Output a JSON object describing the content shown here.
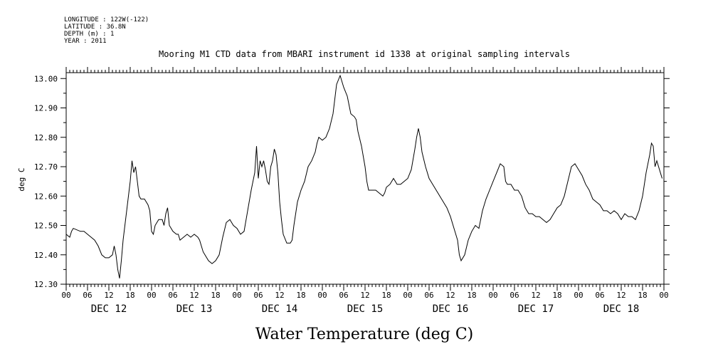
{
  "header": {
    "lines": [
      "LONGITUDE : 122W(-122)",
      "LATITUDE : 36.8N",
      "DEPTH (m) : 1",
      "YEAR : 2011"
    ]
  },
  "chart_data": {
    "type": "line",
    "title": "Mooring M1 CTD data from MBARI instrument id 1338 at original sampling intervals",
    "ylabel": "deg C",
    "xlabel": "Water Temperature (deg C)",
    "ylim": [
      12.3,
      13.02
    ],
    "y_ticks": [
      "12.30",
      "12.40",
      "12.50",
      "12.60",
      "12.70",
      "12.80",
      "12.90",
      "13.00"
    ],
    "x_range_hours": [
      0,
      168
    ],
    "hour_ticks": [
      "00",
      "06",
      "12",
      "18",
      "00",
      "06",
      "12",
      "18",
      "00",
      "06",
      "12",
      "18",
      "00",
      "06",
      "12",
      "18",
      "00",
      "06",
      "12",
      "18",
      "00",
      "06",
      "12",
      "18",
      "00",
      "06",
      "12",
      "18",
      "00"
    ],
    "day_labels": [
      "DEC 12",
      "DEC 13",
      "DEC 14",
      "DEC 15",
      "DEC 16",
      "DEC 17",
      "DEC 18"
    ],
    "grid": false,
    "series": [
      {
        "color": "#000000",
        "points": [
          [
            0,
            12.47
          ],
          [
            1,
            12.46
          ],
          [
            1.5,
            12.48
          ],
          [
            2,
            12.49
          ],
          [
            4,
            12.48
          ],
          [
            5,
            12.48
          ],
          [
            6,
            12.47
          ],
          [
            7,
            12.46
          ],
          [
            8,
            12.45
          ],
          [
            9,
            12.43
          ],
          [
            10,
            12.4
          ],
          [
            11,
            12.39
          ],
          [
            12,
            12.39
          ],
          [
            13,
            12.4
          ],
          [
            13.5,
            12.43
          ],
          [
            14,
            12.4
          ],
          [
            14.5,
            12.35
          ],
          [
            15,
            12.32
          ],
          [
            15.5,
            12.38
          ],
          [
            16,
            12.45
          ],
          [
            17,
            12.55
          ],
          [
            18,
            12.65
          ],
          [
            18.5,
            12.72
          ],
          [
            19,
            12.68
          ],
          [
            19.5,
            12.7
          ],
          [
            20,
            12.65
          ],
          [
            20.5,
            12.6
          ],
          [
            21,
            12.59
          ],
          [
            22,
            12.59
          ],
          [
            23,
            12.57
          ],
          [
            23.5,
            12.55
          ],
          [
            24,
            12.48
          ],
          [
            24.5,
            12.47
          ],
          [
            25,
            12.5
          ],
          [
            26,
            12.52
          ],
          [
            27,
            12.52
          ],
          [
            27.5,
            12.5
          ],
          [
            28,
            12.54
          ],
          [
            28.5,
            12.56
          ],
          [
            29,
            12.5
          ],
          [
            30,
            12.48
          ],
          [
            31,
            12.47
          ],
          [
            31.5,
            12.47
          ],
          [
            32,
            12.45
          ],
          [
            33,
            12.46
          ],
          [
            34,
            12.47
          ],
          [
            35,
            12.46
          ],
          [
            36,
            12.47
          ],
          [
            37,
            12.46
          ],
          [
            37.5,
            12.45
          ],
          [
            38,
            12.43
          ],
          [
            38.5,
            12.41
          ],
          [
            39,
            12.4
          ],
          [
            40,
            12.38
          ],
          [
            41,
            12.37
          ],
          [
            42,
            12.38
          ],
          [
            43,
            12.4
          ],
          [
            44,
            12.46
          ],
          [
            45,
            12.51
          ],
          [
            46,
            12.52
          ],
          [
            47,
            12.5
          ],
          [
            48,
            12.49
          ],
          [
            49,
            12.47
          ],
          [
            50,
            12.48
          ],
          [
            51,
            12.55
          ],
          [
            52,
            12.62
          ],
          [
            53,
            12.68
          ],
          [
            53.5,
            12.77
          ],
          [
            54,
            12.66
          ],
          [
            54.5,
            12.72
          ],
          [
            55,
            12.7
          ],
          [
            55.5,
            12.72
          ],
          [
            56,
            12.69
          ],
          [
            56.5,
            12.65
          ],
          [
            57,
            12.64
          ],
          [
            57.5,
            12.7
          ],
          [
            58,
            12.72
          ],
          [
            58.5,
            12.76
          ],
          [
            59,
            12.74
          ],
          [
            59.5,
            12.68
          ],
          [
            60,
            12.58
          ],
          [
            60.5,
            12.52
          ],
          [
            61,
            12.47
          ],
          [
            62,
            12.44
          ],
          [
            63,
            12.44
          ],
          [
            63.5,
            12.45
          ],
          [
            64,
            12.5
          ],
          [
            65,
            12.58
          ],
          [
            66,
            12.62
          ],
          [
            67,
            12.65
          ],
          [
            68,
            12.7
          ],
          [
            69,
            12.72
          ],
          [
            70,
            12.75
          ],
          [
            70.5,
            12.78
          ],
          [
            71,
            12.8
          ],
          [
            72,
            12.79
          ],
          [
            73,
            12.8
          ],
          [
            74,
            12.83
          ],
          [
            75,
            12.88
          ],
          [
            75.5,
            12.93
          ],
          [
            76,
            12.98
          ],
          [
            77,
            13.01
          ],
          [
            77.5,
            12.99
          ],
          [
            78,
            12.97
          ],
          [
            79,
            12.94
          ],
          [
            79.5,
            12.91
          ],
          [
            80,
            12.88
          ],
          [
            81,
            12.87
          ],
          [
            81.5,
            12.86
          ],
          [
            82,
            12.82
          ],
          [
            83,
            12.77
          ],
          [
            84,
            12.7
          ],
          [
            84.5,
            12.65
          ],
          [
            85,
            12.62
          ],
          [
            86,
            12.62
          ],
          [
            87,
            12.62
          ],
          [
            88,
            12.61
          ],
          [
            89,
            12.6
          ],
          [
            89.5,
            12.61
          ],
          [
            90,
            12.63
          ],
          [
            91,
            12.64
          ],
          [
            92,
            12.66
          ],
          [
            93,
            12.64
          ],
          [
            94,
            12.64
          ],
          [
            95,
            12.65
          ],
          [
            96,
            12.66
          ],
          [
            97,
            12.69
          ],
          [
            98,
            12.76
          ],
          [
            98.5,
            12.8
          ],
          [
            99,
            12.83
          ],
          [
            99.5,
            12.8
          ],
          [
            100,
            12.75
          ],
          [
            101,
            12.7
          ],
          [
            102,
            12.66
          ],
          [
            103,
            12.64
          ],
          [
            104,
            12.62
          ],
          [
            105,
            12.6
          ],
          [
            106,
            12.58
          ],
          [
            107,
            12.56
          ],
          [
            108,
            12.53
          ],
          [
            109,
            12.49
          ],
          [
            110,
            12.45
          ],
          [
            110.5,
            12.4
          ],
          [
            111,
            12.38
          ],
          [
            112,
            12.4
          ],
          [
            113,
            12.45
          ],
          [
            114,
            12.48
          ],
          [
            115,
            12.5
          ],
          [
            116,
            12.49
          ],
          [
            117,
            12.55
          ],
          [
            118,
            12.59
          ],
          [
            119,
            12.62
          ],
          [
            120,
            12.65
          ],
          [
            121,
            12.68
          ],
          [
            122,
            12.71
          ],
          [
            123,
            12.7
          ],
          [
            123.5,
            12.65
          ],
          [
            124,
            12.64
          ],
          [
            125,
            12.64
          ],
          [
            126,
            12.62
          ],
          [
            127,
            12.62
          ],
          [
            128,
            12.6
          ],
          [
            129,
            12.56
          ],
          [
            130,
            12.54
          ],
          [
            131,
            12.54
          ],
          [
            132,
            12.53
          ],
          [
            133,
            12.53
          ],
          [
            134,
            12.52
          ],
          [
            135,
            12.51
          ],
          [
            136,
            12.52
          ],
          [
            137,
            12.54
          ],
          [
            138,
            12.56
          ],
          [
            139,
            12.57
          ],
          [
            140,
            12.6
          ],
          [
            141,
            12.65
          ],
          [
            142,
            12.7
          ],
          [
            143,
            12.71
          ],
          [
            144,
            12.69
          ],
          [
            145,
            12.67
          ],
          [
            146,
            12.64
          ],
          [
            147,
            12.62
          ],
          [
            148,
            12.59
          ],
          [
            149,
            12.58
          ],
          [
            150,
            12.57
          ],
          [
            151,
            12.55
          ],
          [
            152,
            12.55
          ],
          [
            153,
            12.54
          ],
          [
            154,
            12.55
          ],
          [
            155,
            12.54
          ],
          [
            156,
            12.52
          ],
          [
            157,
            12.54
          ],
          [
            158,
            12.53
          ],
          [
            159,
            12.53
          ],
          [
            160,
            12.52
          ],
          [
            161,
            12.55
          ],
          [
            162,
            12.6
          ],
          [
            163,
            12.68
          ],
          [
            164,
            12.74
          ],
          [
            164.5,
            12.78
          ],
          [
            165,
            12.77
          ],
          [
            165.5,
            12.7
          ],
          [
            166,
            12.72
          ],
          [
            167,
            12.68
          ],
          [
            167.5,
            12.66
          ]
        ]
      }
    ]
  }
}
